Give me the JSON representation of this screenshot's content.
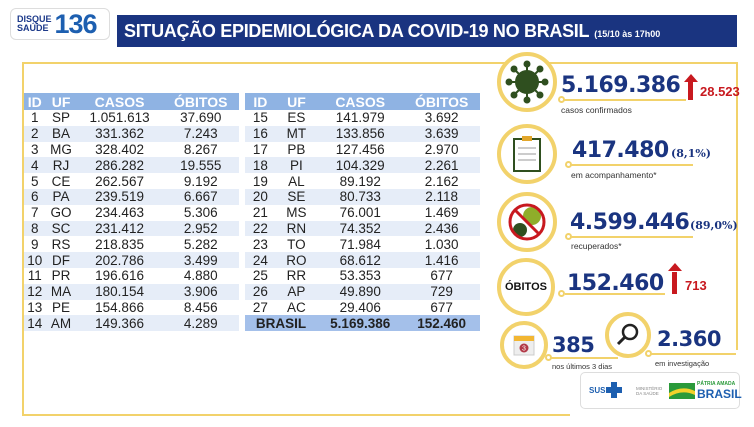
{
  "logo": {
    "line1": "DISQUE",
    "line2": "SAÚDE",
    "number": "136"
  },
  "header": {
    "title": "SITUAÇÃO EPIDEMIOLÓGICA DA COVID-19 NO BRASIL",
    "date": "(15/10 às 17h00"
  },
  "table": {
    "columns": [
      "ID",
      "UF",
      "CASOS",
      "ÓBITOS"
    ],
    "left": [
      [
        "1",
        "SP",
        "1.051.613",
        "37.690"
      ],
      [
        "2",
        "BA",
        "331.362",
        "7.243"
      ],
      [
        "3",
        "MG",
        "328.402",
        "8.267"
      ],
      [
        "4",
        "RJ",
        "286.282",
        "19.555"
      ],
      [
        "5",
        "CE",
        "262.567",
        "9.192"
      ],
      [
        "6",
        "PA",
        "239.519",
        "6.667"
      ],
      [
        "7",
        "GO",
        "234.463",
        "5.306"
      ],
      [
        "8",
        "SC",
        "231.412",
        "2.952"
      ],
      [
        "9",
        "RS",
        "218.835",
        "5.282"
      ],
      [
        "10",
        "DF",
        "202.786",
        "3.499"
      ],
      [
        "11",
        "PR",
        "196.616",
        "4.880"
      ],
      [
        "12",
        "MA",
        "180.154",
        "3.906"
      ],
      [
        "13",
        "PE",
        "154.866",
        "8.456"
      ],
      [
        "14",
        "AM",
        "149.366",
        "4.289"
      ]
    ],
    "right": [
      [
        "15",
        "ES",
        "141.979",
        "3.692"
      ],
      [
        "16",
        "MT",
        "133.856",
        "3.639"
      ],
      [
        "17",
        "PB",
        "127.456",
        "2.970"
      ],
      [
        "18",
        "PI",
        "104.329",
        "2.261"
      ],
      [
        "19",
        "AL",
        "89.192",
        "2.162"
      ],
      [
        "20",
        "SE",
        "80.733",
        "2.118"
      ],
      [
        "21",
        "MS",
        "76.001",
        "1.469"
      ],
      [
        "22",
        "RN",
        "74.352",
        "2.436"
      ],
      [
        "23",
        "TO",
        "71.984",
        "1.030"
      ],
      [
        "24",
        "RO",
        "68.612",
        "1.416"
      ],
      [
        "25",
        "RR",
        "53.353",
        "677"
      ],
      [
        "26",
        "AP",
        "49.890",
        "729"
      ],
      [
        "27",
        "AC",
        "29.406",
        "677"
      ]
    ],
    "total": {
      "label": "BRASIL",
      "casos": "5.169.386",
      "obitos": "152.460"
    }
  },
  "stats": {
    "confirmed": {
      "value": "5.169.386",
      "increase": "28.523",
      "label": "casos confirmados"
    },
    "monitoring": {
      "value": "417.480",
      "pct": "(8,1%)",
      "label": "em acompanhamento*"
    },
    "recovered": {
      "value": "4.599.446",
      "pct": "(89,0%)",
      "label": "recuperados*"
    },
    "deaths": {
      "icon_text": "ÓBITOS",
      "value": "152.460",
      "increase": "713"
    },
    "last3days": {
      "value": "385",
      "label": "nos últimos 3 dias",
      "calendar": "3"
    },
    "investigation": {
      "value": "2.360",
      "label": "em investigação"
    }
  },
  "footer": {
    "sus": "SUS",
    "ministry": "MINISTÉRIO DA SAÚDE",
    "slogan": "PÁTRIA AMADA",
    "brasil": "BRASIL"
  },
  "colors": {
    "navy": "#1a3480",
    "yellow": "#f2d26b",
    "red": "#c8191f",
    "header_blue": "#8fb3e3"
  }
}
